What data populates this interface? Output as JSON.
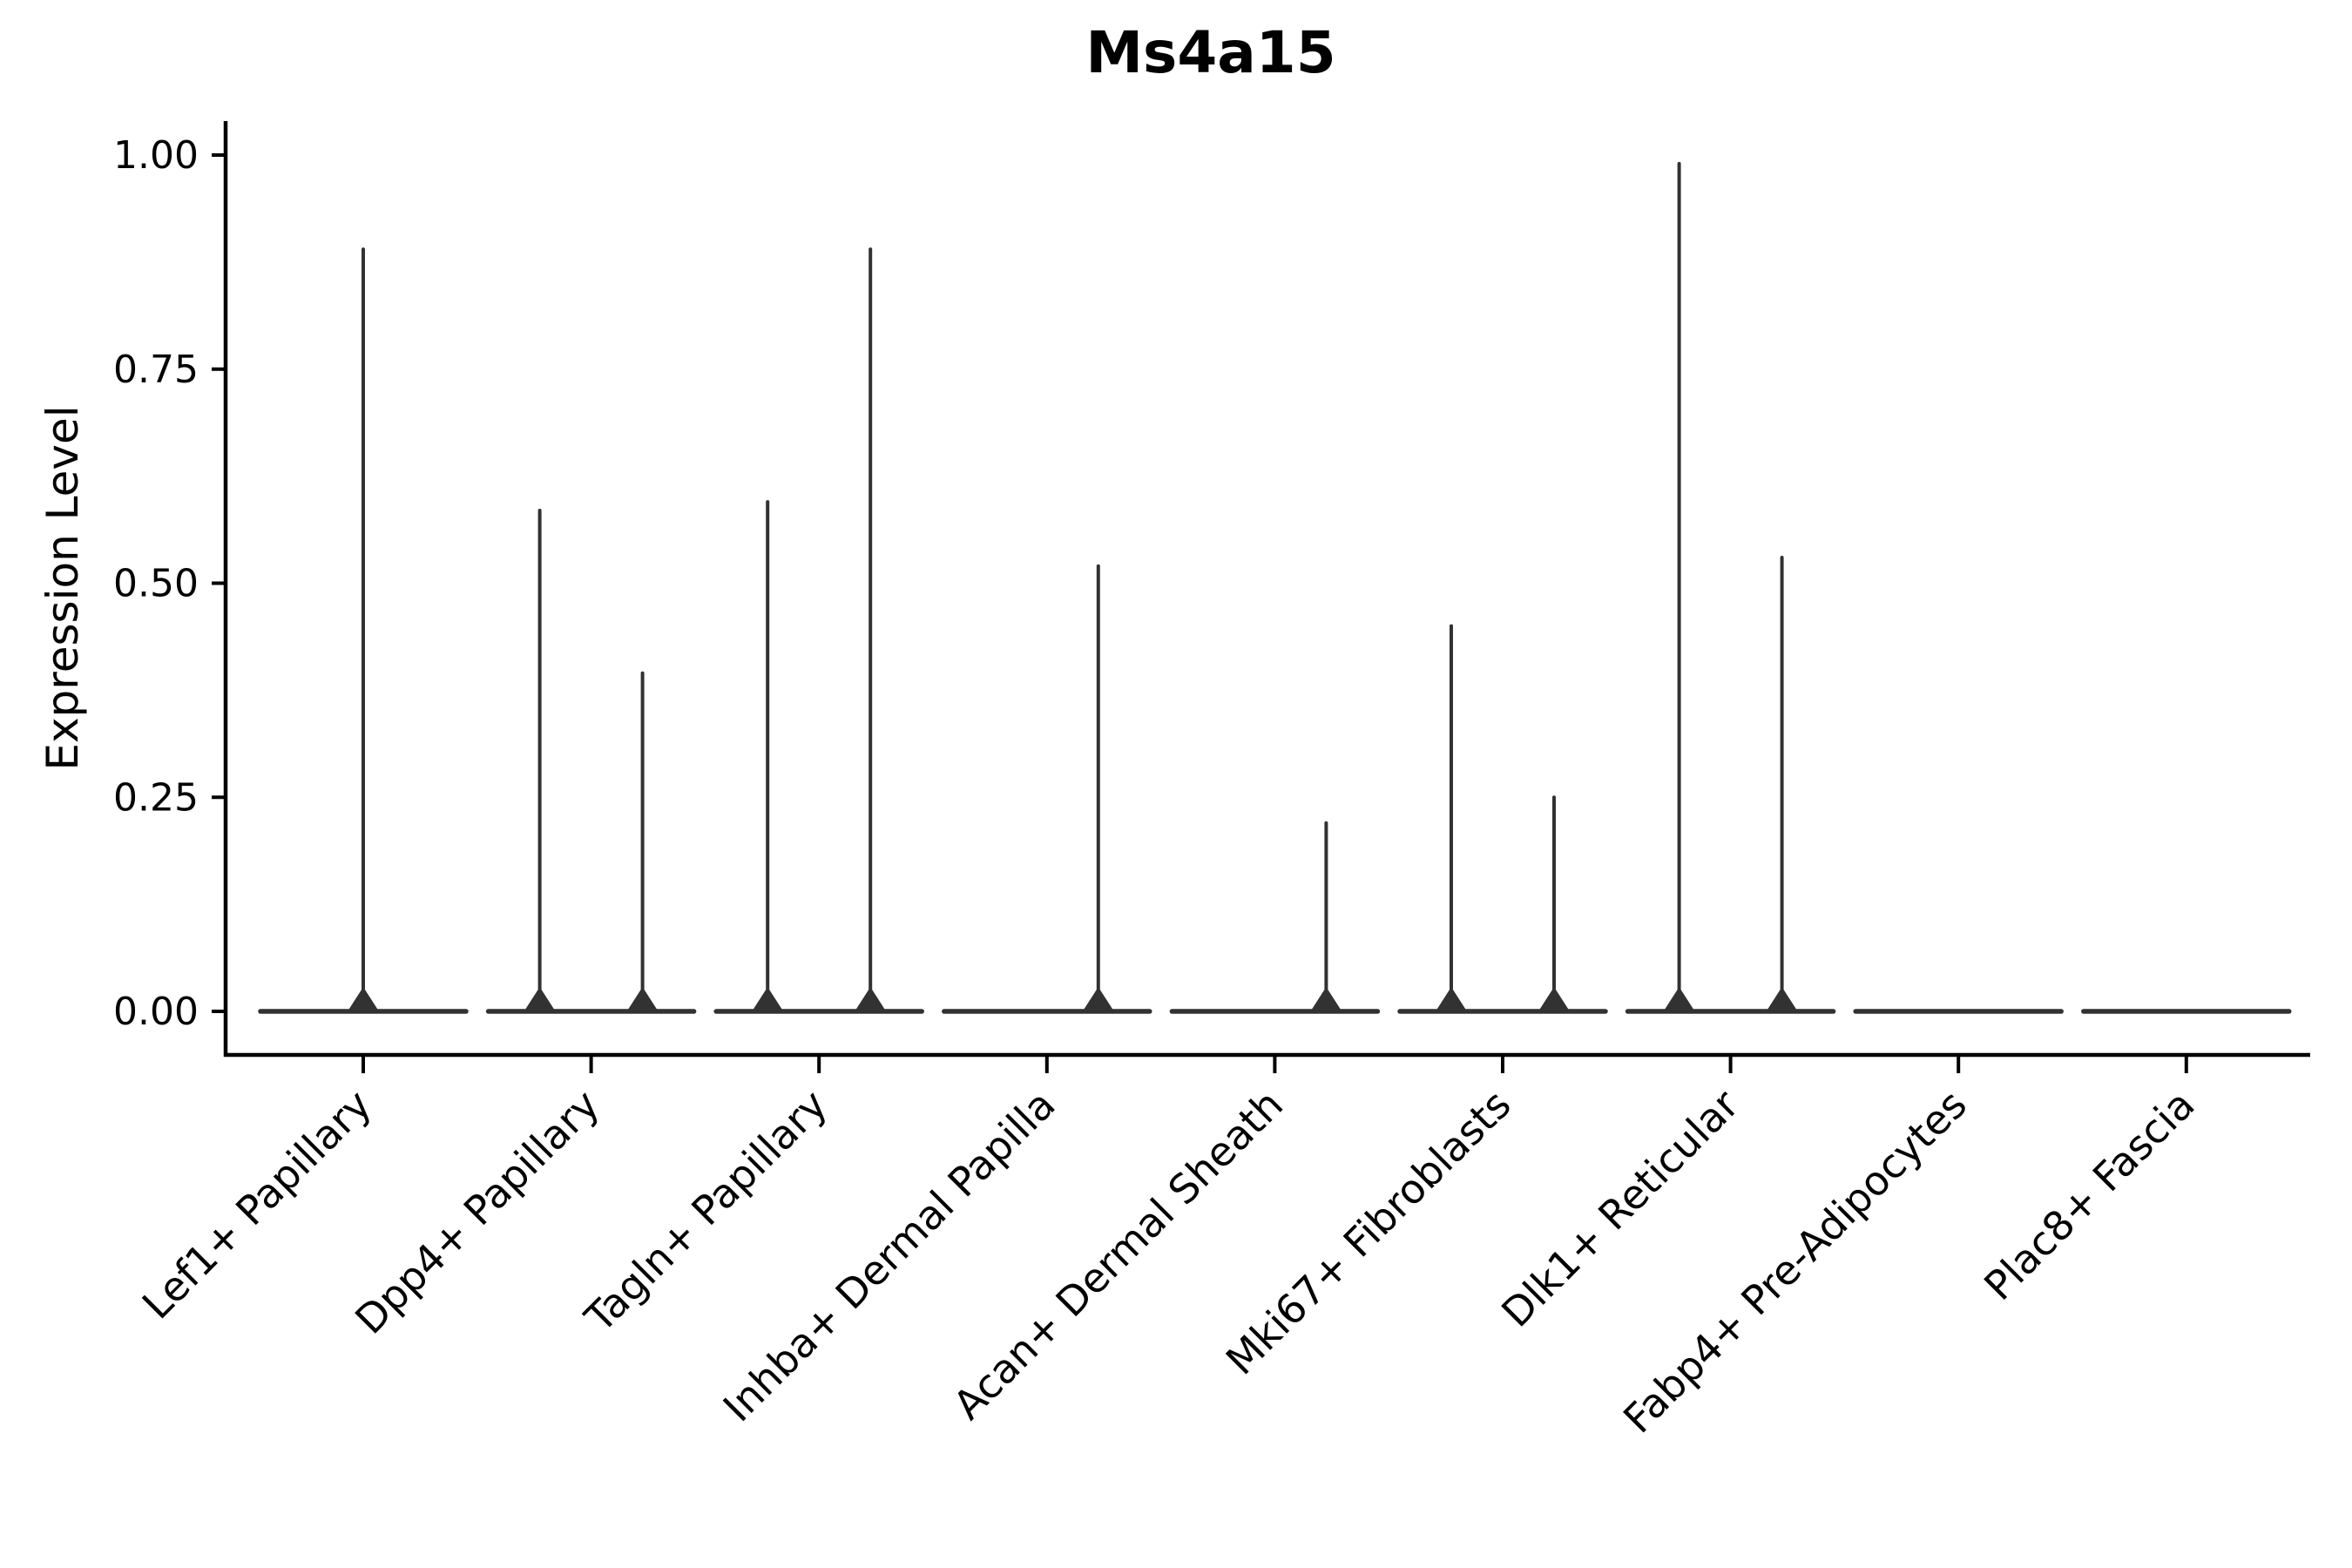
{
  "chart_data": {
    "type": "violin",
    "title": "Ms4a15",
    "ylabel": "Expression Level",
    "xlabel": "",
    "ylim": [
      0,
      1.05
    ],
    "grid": false,
    "legend": null,
    "yticks": [
      {
        "label": "0.00",
        "value": 0.0
      },
      {
        "label": "0.25",
        "value": 0.25
      },
      {
        "label": "0.50",
        "value": 0.5
      },
      {
        "label": "0.75",
        "value": 0.75
      },
      {
        "label": "1.00",
        "value": 1.0
      }
    ],
    "categories": [
      "Lef1+ Papillary",
      "Dpp4+ Papillary",
      "Tagln+ Papillary",
      "Inhba+ Dermal Papilla",
      "Acan+ Dermal Sheath",
      "Mki67+ Fibroblasts",
      "Dlk1+ Reticular",
      "Fabp4+ Pre-Adipocytes",
      "Plac8+ Fascia"
    ],
    "violins": [
      {
        "category": "Lef1+ Papillary",
        "spikes": [
          {
            "pos": "center",
            "max": 0.89
          }
        ]
      },
      {
        "category": "Dpp4+ Papillary",
        "spikes": [
          {
            "pos": "left",
            "max": 0.585
          },
          {
            "pos": "right",
            "max": 0.395
          }
        ]
      },
      {
        "category": "Tagln+ Papillary",
        "spikes": [
          {
            "pos": "left",
            "max": 0.595
          },
          {
            "pos": "right",
            "max": 0.89
          }
        ]
      },
      {
        "category": "Inhba+ Dermal Papilla",
        "spikes": [
          {
            "pos": "right",
            "max": 0.52
          }
        ]
      },
      {
        "category": "Acan+ Dermal Sheath",
        "spikes": [
          {
            "pos": "right",
            "max": 0.22
          }
        ]
      },
      {
        "category": "Mki67+ Fibroblasts",
        "spikes": [
          {
            "pos": "left",
            "max": 0.45
          },
          {
            "pos": "right",
            "max": 0.25
          }
        ]
      },
      {
        "category": "Dlk1+ Reticular",
        "spikes": [
          {
            "pos": "left",
            "max": 0.99
          },
          {
            "pos": "right",
            "max": 0.53
          }
        ]
      },
      {
        "category": "Fabp4+ Pre-Adipocytes",
        "spikes": []
      },
      {
        "category": "Plac8+ Fascia",
        "spikes": []
      }
    ],
    "colors": {
      "violin_line": "#323232",
      "axis": "#000000",
      "text": "#000000",
      "background": "#ffffff"
    }
  }
}
